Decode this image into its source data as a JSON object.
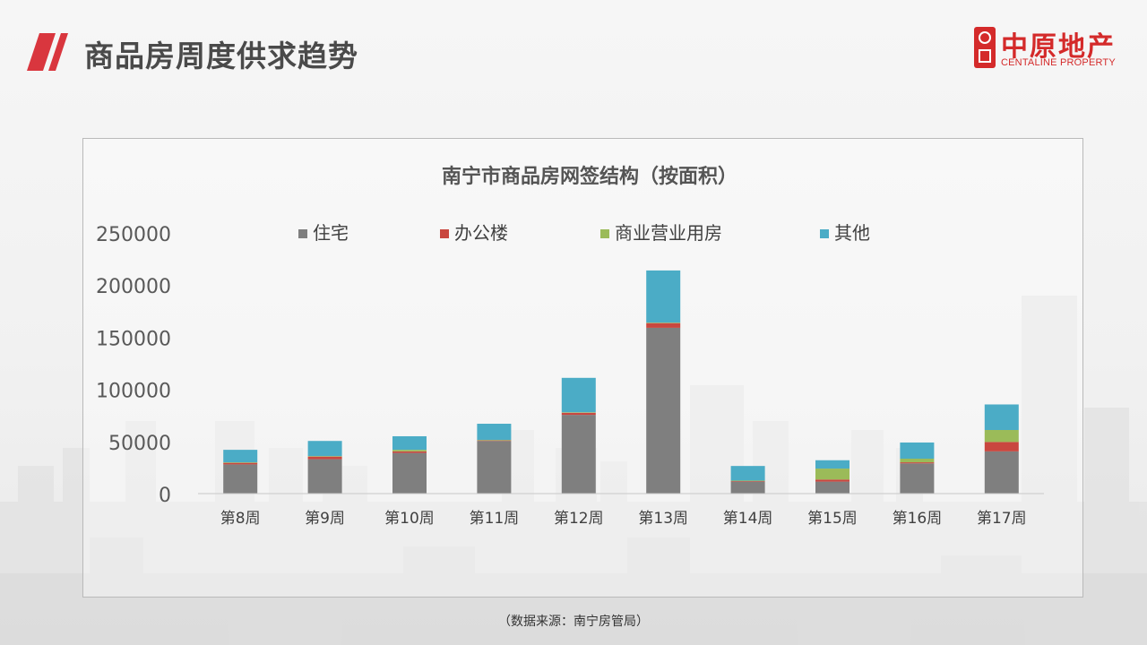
{
  "header": {
    "title": "商品房周度供求趋势",
    "logo_cn": "中原地产",
    "logo_en": "CENTALINE PROPERTY",
    "accent_color": "#d42a2a"
  },
  "source_note": "（数据来源：南宁房管局）",
  "chart_data": {
    "type": "bar",
    "stacked": true,
    "title": "南宁市商品房网签结构（按面积）",
    "xlabel": "",
    "ylabel": "",
    "ylim": [
      0,
      250000
    ],
    "yticks": [
      0,
      50000,
      100000,
      150000,
      200000,
      250000
    ],
    "grid": false,
    "legend_position": "top",
    "categories": [
      "第8周",
      "第9周",
      "第10周",
      "第11周",
      "第12周",
      "第13周",
      "第14周",
      "第15周",
      "第16周",
      "第17周"
    ],
    "series": [
      {
        "name": "住宅",
        "color": "#7f7f7f",
        "values": [
          28000,
          33000,
          39000,
          50500,
          75500,
          159000,
          11500,
          11500,
          29000,
          40500
        ]
      },
      {
        "name": "办公楼",
        "color": "#c9473f",
        "values": [
          1500,
          2500,
          1500,
          500,
          2000,
          4500,
          500,
          2000,
          1000,
          9000
        ]
      },
      {
        "name": "商业营业用房",
        "color": "#9bbb59",
        "values": [
          500,
          500,
          1500,
          500,
          500,
          500,
          500,
          10500,
          3500,
          11500
        ]
      },
      {
        "name": "其他",
        "color": "#4bacc6",
        "values": [
          12000,
          14500,
          13000,
          15500,
          33000,
          50000,
          14000,
          8000,
          15500,
          24500
        ]
      }
    ]
  }
}
